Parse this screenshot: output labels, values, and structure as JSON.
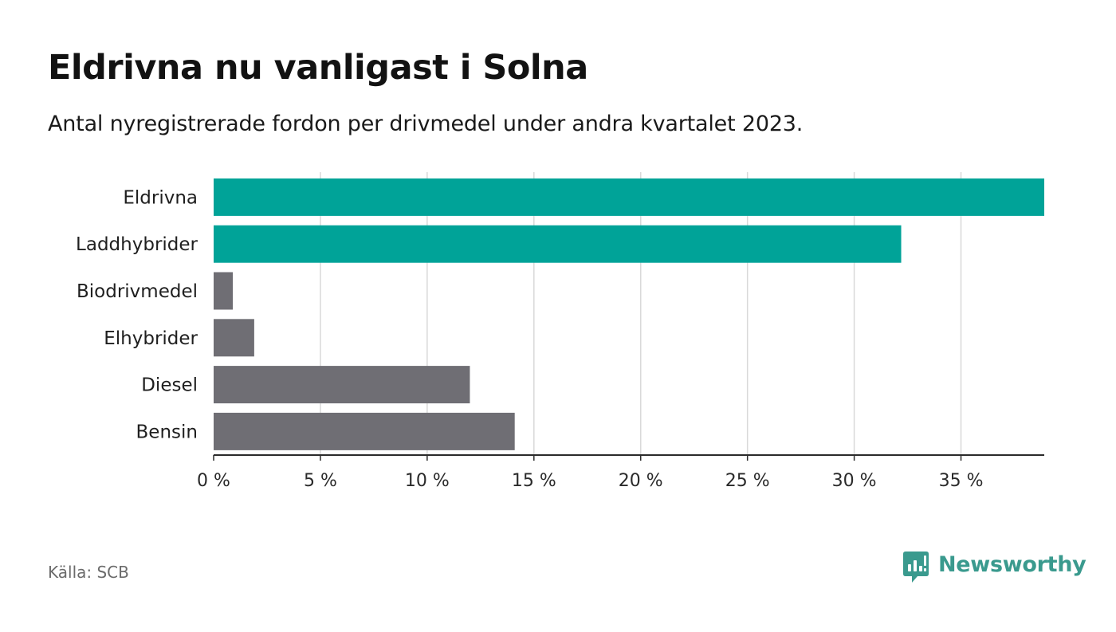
{
  "header": {
    "title": "Eldrivna nu vanligast i Solna",
    "subtitle": "Antal nyregistrerade fordon per drivmedel under andra kvartalet 2023."
  },
  "footer": {
    "source": "Källa: SCB",
    "brand": "Newsworthy"
  },
  "colors": {
    "highlight": "#00a398",
    "default": "#6f6e74",
    "grid": "#d9d9d9",
    "axis": "#2b2b2b",
    "brand": "#3a9a8e"
  },
  "chart_data": {
    "type": "bar",
    "orientation": "horizontal",
    "title": "Eldrivna nu vanligast i Solna",
    "subtitle": "Antal nyregistrerade fordon per drivmedel under andra kvartalet 2023.",
    "categories": [
      "Eldrivna",
      "Laddhybrider",
      "Biodrivmedel",
      "Elhybrider",
      "Diesel",
      "Bensin"
    ],
    "values": [
      38.9,
      32.2,
      0.9,
      1.9,
      12.0,
      14.1
    ],
    "highlighted": [
      true,
      true,
      false,
      false,
      false,
      false
    ],
    "xlabel": "",
    "ylabel": "",
    "xlim": [
      0,
      38.9
    ],
    "xticks": [
      0,
      5,
      10,
      15,
      20,
      25,
      30,
      35
    ],
    "xtick_labels": [
      "0 %",
      "5 %",
      "10 %",
      "15 %",
      "20 %",
      "25 %",
      "30 %",
      "35 %"
    ],
    "grid": true,
    "legend": "none"
  }
}
